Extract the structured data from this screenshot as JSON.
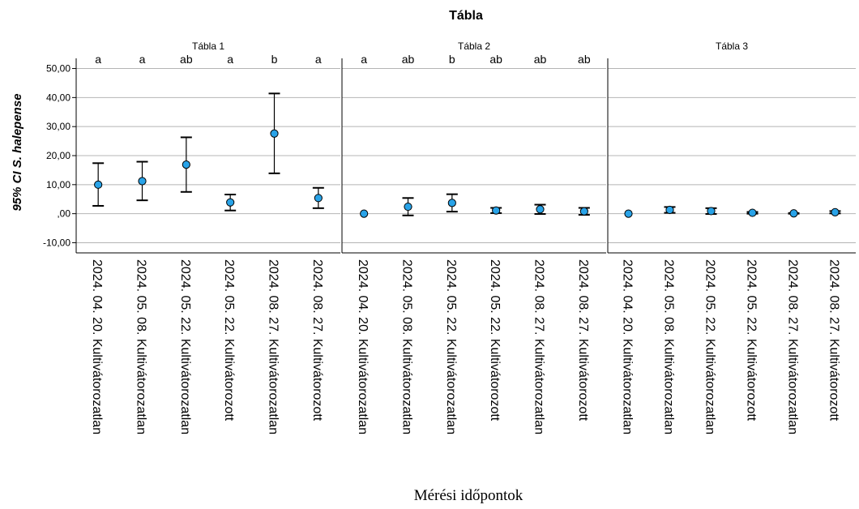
{
  "chart_data": {
    "type": "scatter",
    "title": "Tábla",
    "xlabel": "Mérési időpontok",
    "ylabel": "95% CI S. halepense",
    "ylim": [
      -13.5,
      53.5
    ],
    "yticks": [
      -10,
      0,
      10,
      20,
      30,
      40,
      50
    ],
    "ytick_labels": [
      "-10,00",
      ",00",
      "10,00",
      "20,00",
      "30,00",
      "40,00",
      "50,00"
    ],
    "grid": true,
    "marker_color": "#29a3e8",
    "categories": [
      "2024. 04. 20. Kultivátorozatlan",
      "2024. 05. 08. Kultivátorozatlan",
      "2024. 05. 22. Kultivátorozatlan",
      "2024. 05. 22. Kultivátorozott",
      "2024. 08. 27. Kultivátorozatlan",
      "2024. 08. 27. Kultivátorozott"
    ],
    "panels": [
      {
        "name": "Tábla 1",
        "letters": [
          "a",
          "a",
          "ab",
          "a",
          "b",
          "a"
        ],
        "mean": [
          10.0,
          11.2,
          16.9,
          3.9,
          27.6,
          5.4
        ],
        "ci_low": [
          2.7,
          4.6,
          7.5,
          1.1,
          13.9,
          1.9
        ],
        "ci_high": [
          17.4,
          17.9,
          26.3,
          6.6,
          41.4,
          8.9
        ]
      },
      {
        "name": "Tábla 2",
        "letters": [
          "a",
          "ab",
          "b",
          "ab",
          "ab",
          "ab"
        ],
        "mean": [
          0.0,
          2.4,
          3.7,
          1.1,
          1.5,
          0.8
        ],
        "ci_low": [
          0.0,
          -0.6,
          0.7,
          0.2,
          -0.1,
          -0.4
        ],
        "ci_high": [
          0.0,
          5.4,
          6.7,
          2.0,
          3.1,
          2.0
        ]
      },
      {
        "name": "Tábla 3",
        "letters": [],
        "mean": [
          0.0,
          1.3,
          0.9,
          0.3,
          0.1,
          0.5
        ],
        "ci_low": [
          0.0,
          0.3,
          -0.1,
          0.0,
          0.0,
          0.1
        ],
        "ci_high": [
          0.0,
          2.3,
          1.9,
          0.6,
          0.2,
          0.9
        ]
      }
    ]
  }
}
